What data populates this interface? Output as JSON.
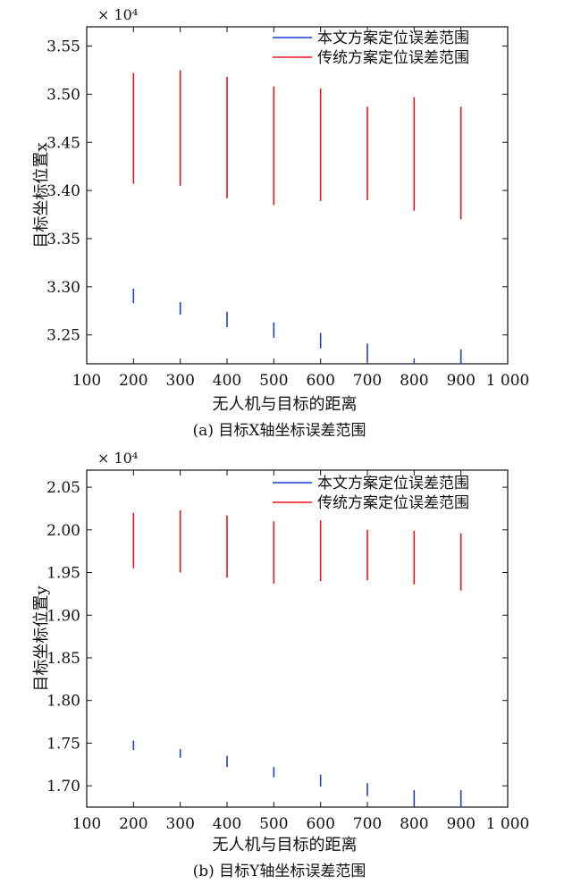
{
  "chart_data": [
    {
      "type": "errorbar",
      "caption": "(a) 目标X轴坐标误差范围",
      "ylabel": "目标坐标位置x",
      "xlabel": "无人机与目标的距离",
      "multiplier": "× 10⁴",
      "x_ticks": [
        "100",
        "200",
        "300",
        "400",
        "500",
        "600",
        "700",
        "800",
        "900",
        "1 000"
      ],
      "y_ticks": [
        "3.25",
        "3.30",
        "3.35",
        "3.40",
        "3.45",
        "3.50",
        "3.55"
      ],
      "xlim": [
        100,
        1000
      ],
      "ylim": [
        3.22,
        3.57
      ],
      "legend_position": "top-right",
      "series": [
        {
          "name": "本文方案定位误差范围",
          "color": "#1f3fd1",
          "x": [
            200,
            300,
            400,
            500,
            600,
            700,
            800,
            900
          ],
          "low": [
            3.283,
            3.271,
            3.258,
            3.247,
            3.236,
            3.223,
            3.215,
            3.213
          ],
          "high": [
            3.298,
            3.284,
            3.274,
            3.263,
            3.252,
            3.241,
            3.224,
            3.235
          ]
        },
        {
          "name": "传统方案定位误差范围",
          "color": "#e8141c",
          "x": [
            200,
            300,
            400,
            500,
            600,
            700,
            800,
            900
          ],
          "low": [
            3.407,
            3.405,
            3.392,
            3.385,
            3.389,
            3.39,
            3.379,
            3.37
          ],
          "high": [
            3.522,
            3.525,
            3.518,
            3.508,
            3.506,
            3.487,
            3.497,
            3.487
          ]
        }
      ]
    },
    {
      "type": "errorbar",
      "caption": "(b) 目标Y轴坐标误差范围",
      "ylabel": "目标坐标位置y",
      "xlabel": "无人机与目标的距离",
      "multiplier": "× 10⁴",
      "x_ticks": [
        "100",
        "200",
        "300",
        "400",
        "500",
        "600",
        "700",
        "800",
        "900",
        "1 000"
      ],
      "y_ticks": [
        "1.70",
        "1.75",
        "1.80",
        "1.85",
        "1.90",
        "1.95",
        "2.00",
        "2.05"
      ],
      "xlim": [
        100,
        1000
      ],
      "ylim": [
        1.675,
        2.07
      ],
      "legend_position": "top-right",
      "series": [
        {
          "name": "本文方案定位误差范围",
          "color": "#1f3fd1",
          "x": [
            200,
            300,
            400,
            500,
            600,
            700,
            800,
            900
          ],
          "low": [
            1.742,
            1.733,
            1.722,
            1.71,
            1.699,
            1.688,
            1.677,
            1.675
          ],
          "high": [
            1.753,
            1.743,
            1.735,
            1.722,
            1.713,
            1.703,
            1.695,
            1.695
          ]
        },
        {
          "name": "传统方案定位误差范围",
          "color": "#e8141c",
          "x": [
            200,
            300,
            400,
            500,
            600,
            700,
            800,
            900
          ],
          "low": [
            1.955,
            1.95,
            1.944,
            1.937,
            1.94,
            1.941,
            1.936,
            1.929
          ],
          "high": [
            2.02,
            2.023,
            2.017,
            2.01,
            2.011,
            2.0,
            1.999,
            1.996
          ]
        }
      ]
    }
  ]
}
